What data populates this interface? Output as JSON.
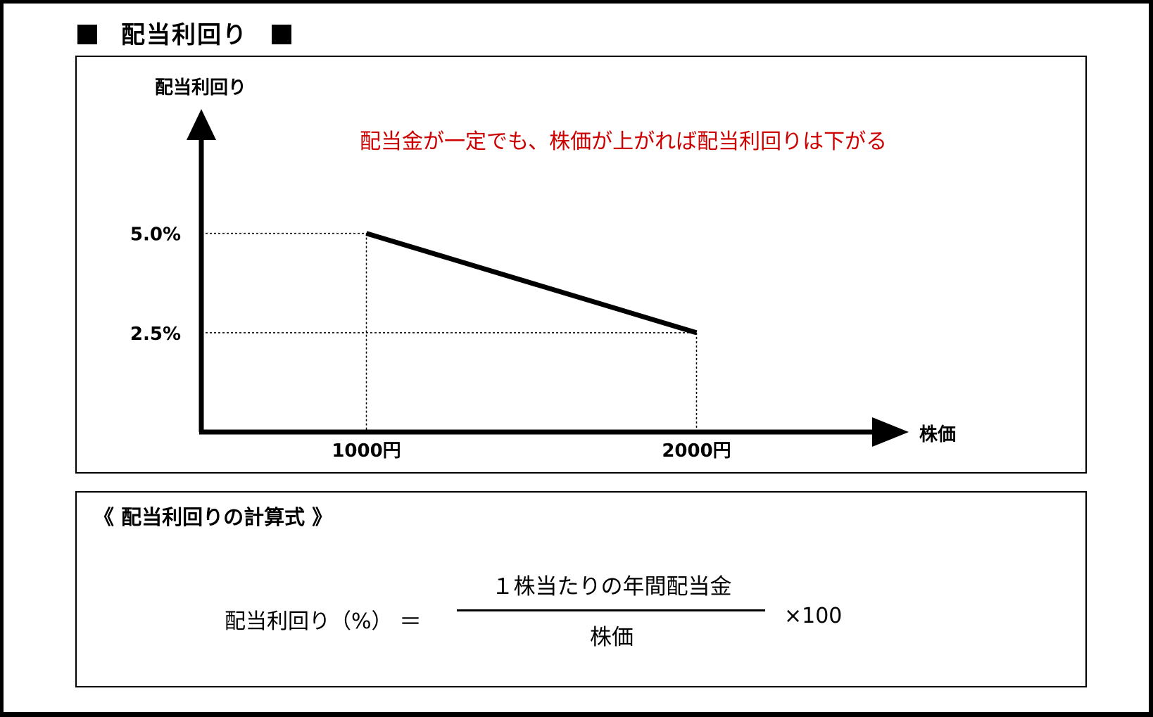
{
  "page_title": "配当利回り",
  "chart_data": {
    "type": "line",
    "ylabel": "配当利回り",
    "xlabel": "株価",
    "annotation": "配当金が一定でも、株価が上がれば配当利回りは下がる",
    "annotation_color": "#cc0000",
    "x_categories": [
      "1000円",
      "2000円"
    ],
    "y_ticks": [
      "5.0%",
      "2.5%"
    ],
    "points": [
      {
        "x": 1000,
        "y": 5.0
      },
      {
        "x": 2000,
        "y": 2.5
      }
    ],
    "x_range": [
      500,
      2500
    ],
    "y_range": [
      0,
      8.2
    ],
    "guides": "dotted"
  },
  "formula": {
    "heading": "《 配当利回りの計算式 》",
    "lhs": "配当利回り（%）",
    "equals": "＝",
    "numerator": "１株当たりの年間配当金",
    "denominator": "株価",
    "multiplier": "×100"
  }
}
